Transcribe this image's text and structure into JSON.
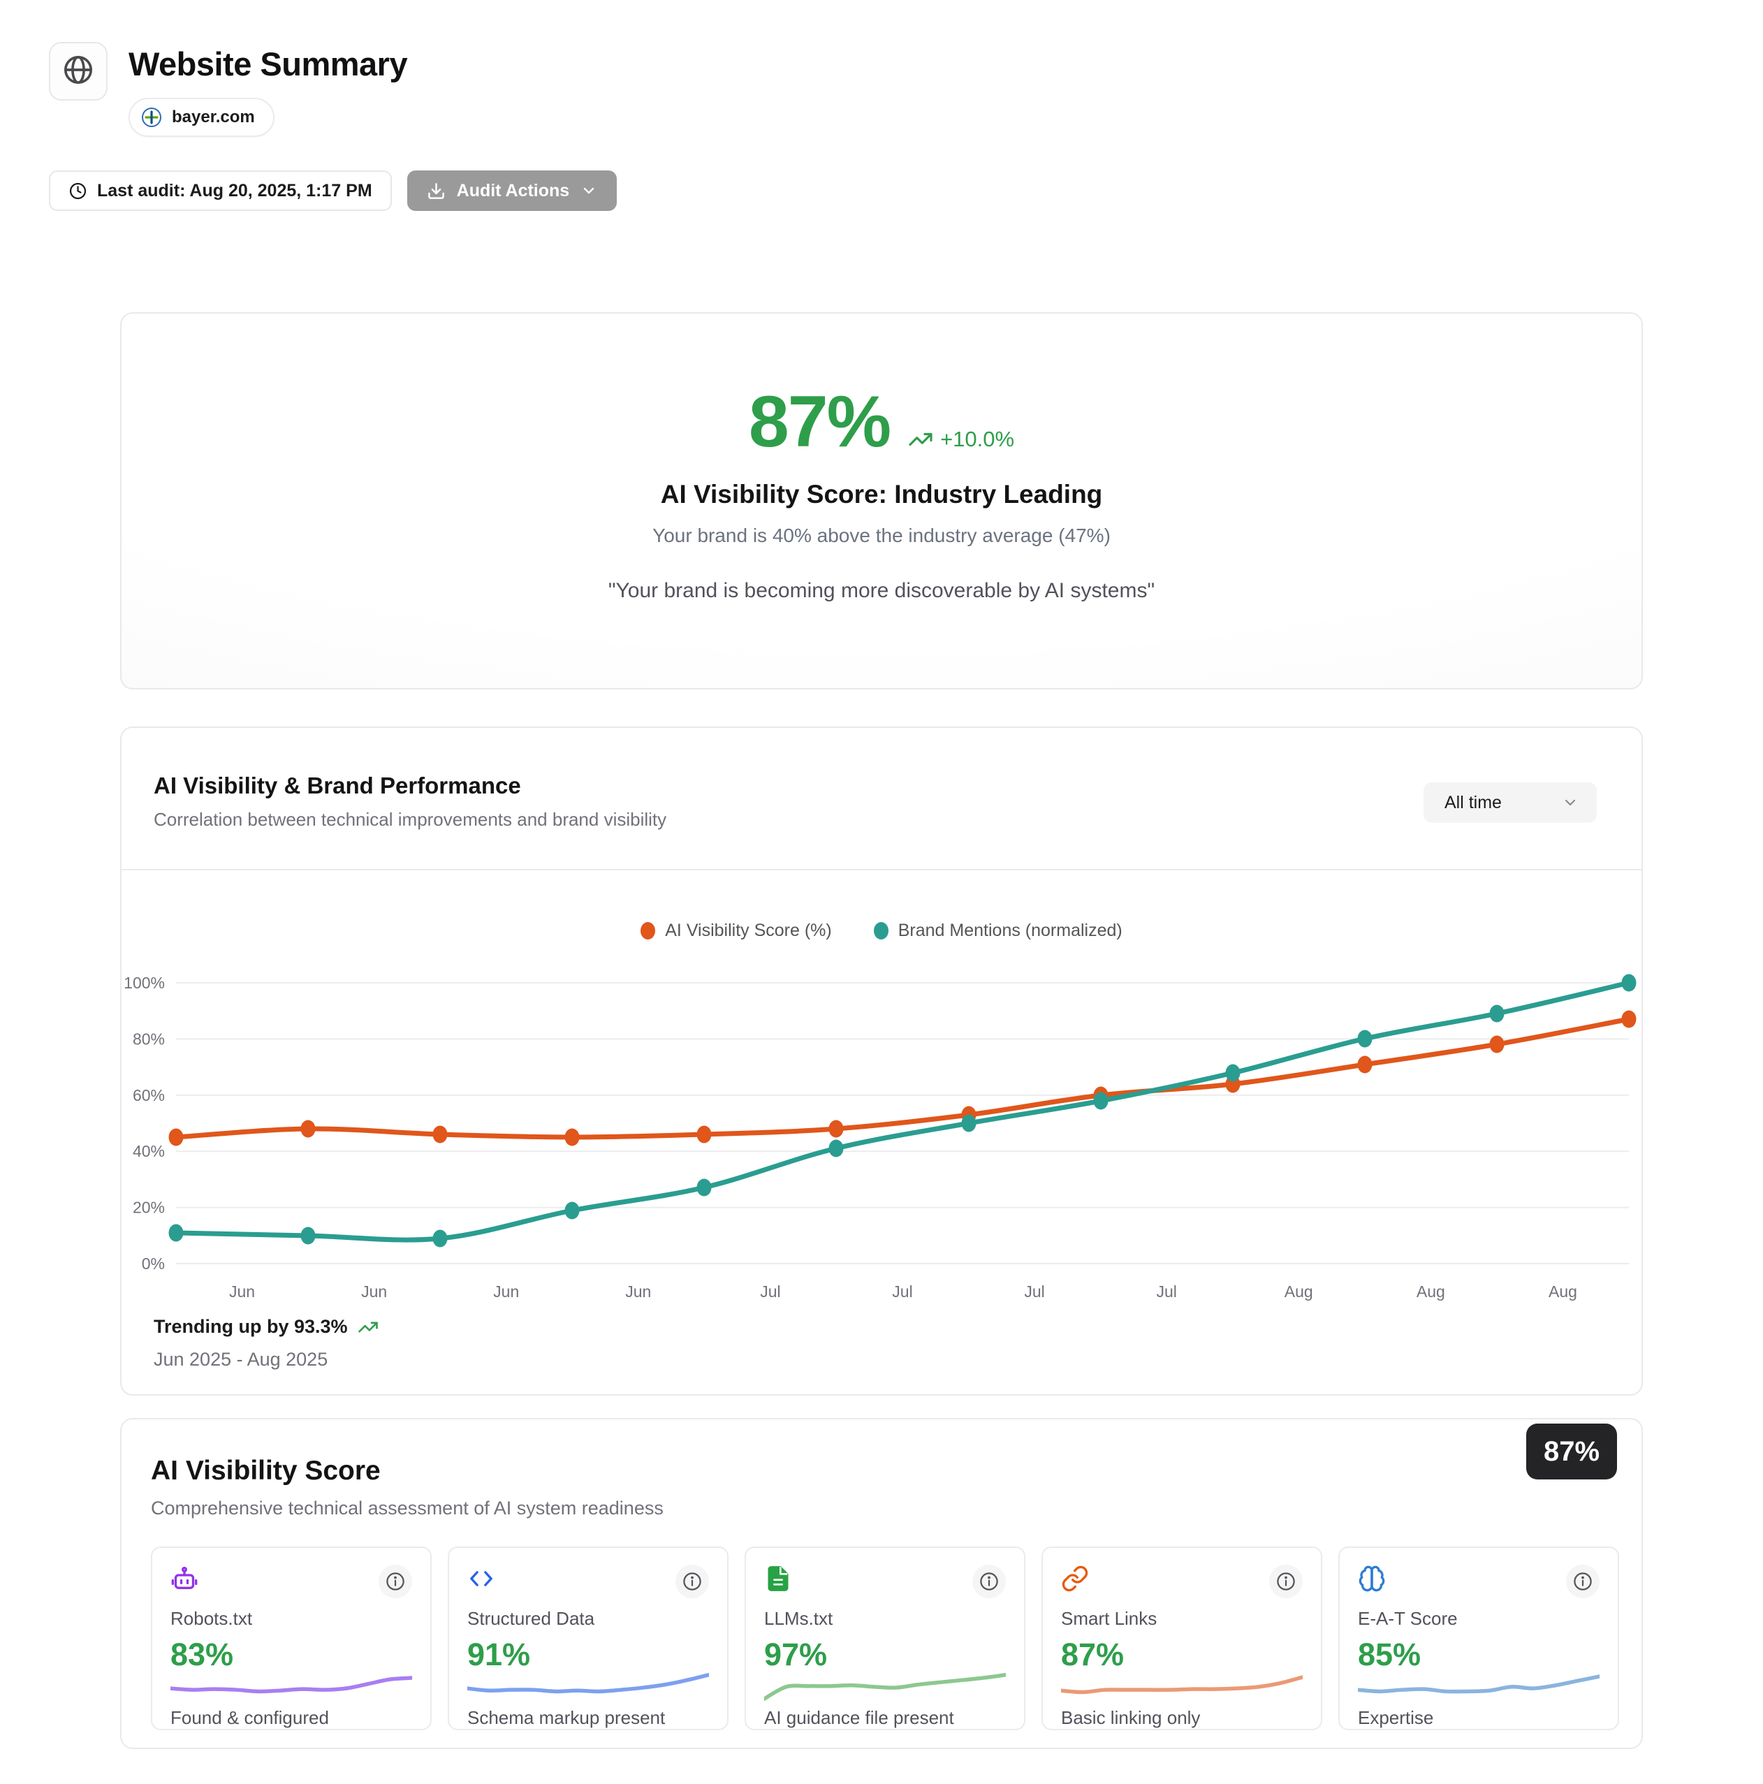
{
  "header": {
    "title": "Website Summary",
    "domain": "bayer.com",
    "last_audit_label": "Last audit: Aug 20, 2025, 1:17 PM",
    "audit_actions_label": "Audit Actions"
  },
  "hero": {
    "score": "87%",
    "delta": "+10.0%",
    "title": "AI Visibility Score: Industry Leading",
    "subtitle": "Your brand is 40% above the industry average (47%)",
    "quote": "\"Your brand is becoming more discoverable by AI systems\""
  },
  "performance": {
    "title": "AI Visibility & Brand Performance",
    "subtitle": "Correlation between technical improvements and brand visibility",
    "range_selected": "All time",
    "footer_trend": "Trending up by 93.3%",
    "footer_range": "Jun 2025 - Aug 2025"
  },
  "chart_data": {
    "type": "line",
    "title": "AI Visibility & Brand Performance",
    "x_tick_labels": [
      "Jun",
      "Jun",
      "Jun",
      "Jun",
      "Jul",
      "Jul",
      "Jul",
      "Jul",
      "Aug",
      "Aug",
      "Aug"
    ],
    "y_tick_labels": [
      "0%",
      "20%",
      "40%",
      "60%",
      "80%",
      "100%"
    ],
    "ylim": [
      0,
      100
    ],
    "grid": "horizontal",
    "legend_position": "top",
    "series": [
      {
        "name": "AI Visibility Score (%)",
        "color": "#e0561b",
        "values": [
          45,
          48,
          46,
          45,
          46,
          48,
          53,
          60,
          64,
          71,
          78,
          87
        ]
      },
      {
        "name": "Brand Mentions (normalized)",
        "color": "#2a9d90",
        "values": [
          11,
          10,
          9,
          19,
          27,
          41,
          50,
          58,
          68,
          80,
          89,
          100
        ]
      }
    ]
  },
  "visibility": {
    "title": "AI Visibility Score",
    "subtitle": "Comprehensive technical assessment of AI system readiness",
    "badge": "87%",
    "metrics": [
      {
        "label": "Robots.txt",
        "value": "83%",
        "status": "Found & configured",
        "icon": "robot-icon",
        "icon_color": "#9333ea",
        "spark_color": "#a97ef2",
        "spark": [
          16,
          14,
          15,
          14,
          12,
          13,
          15,
          14,
          16,
          22,
          28,
          30
        ]
      },
      {
        "label": "Structured Data",
        "value": "91%",
        "status": "Schema markup present",
        "icon": "code-icon",
        "icon_color": "#2563eb",
        "spark_color": "#7da0ef",
        "spark": [
          16,
          13,
          14,
          14,
          12,
          13,
          12,
          14,
          17,
          21,
          27,
          34
        ]
      },
      {
        "label": "LLMs.txt",
        "value": "97%",
        "status": "AI guidance file present",
        "icon": "file-text-icon",
        "icon_color": "#27a244",
        "spark_color": "#8cc88f",
        "spark": [
          2,
          18,
          19,
          19,
          20,
          18,
          17,
          21,
          24,
          27,
          30,
          34
        ]
      },
      {
        "label": "Smart Links",
        "value": "87%",
        "status": "Basic linking only",
        "icon": "link-icon",
        "icon_color": "#e8590c",
        "spark_color": "#ea9a76",
        "spark": [
          13,
          11,
          14,
          14,
          14,
          14,
          15,
          15,
          16,
          18,
          23,
          31
        ]
      },
      {
        "label": "E-A-T Score",
        "value": "85%",
        "status": "Expertise",
        "icon": "brain-icon",
        "icon_color": "#2d7dd2",
        "spark_color": "#8ab4dd",
        "spark": [
          14,
          12,
          14,
          15,
          12,
          12,
          13,
          18,
          16,
          20,
          26,
          32
        ]
      }
    ]
  },
  "colors": {
    "accent_green": "#2e9e4a",
    "series_orange": "#e0561b",
    "series_teal": "#2a9d90",
    "badge_bg": "#242426"
  }
}
